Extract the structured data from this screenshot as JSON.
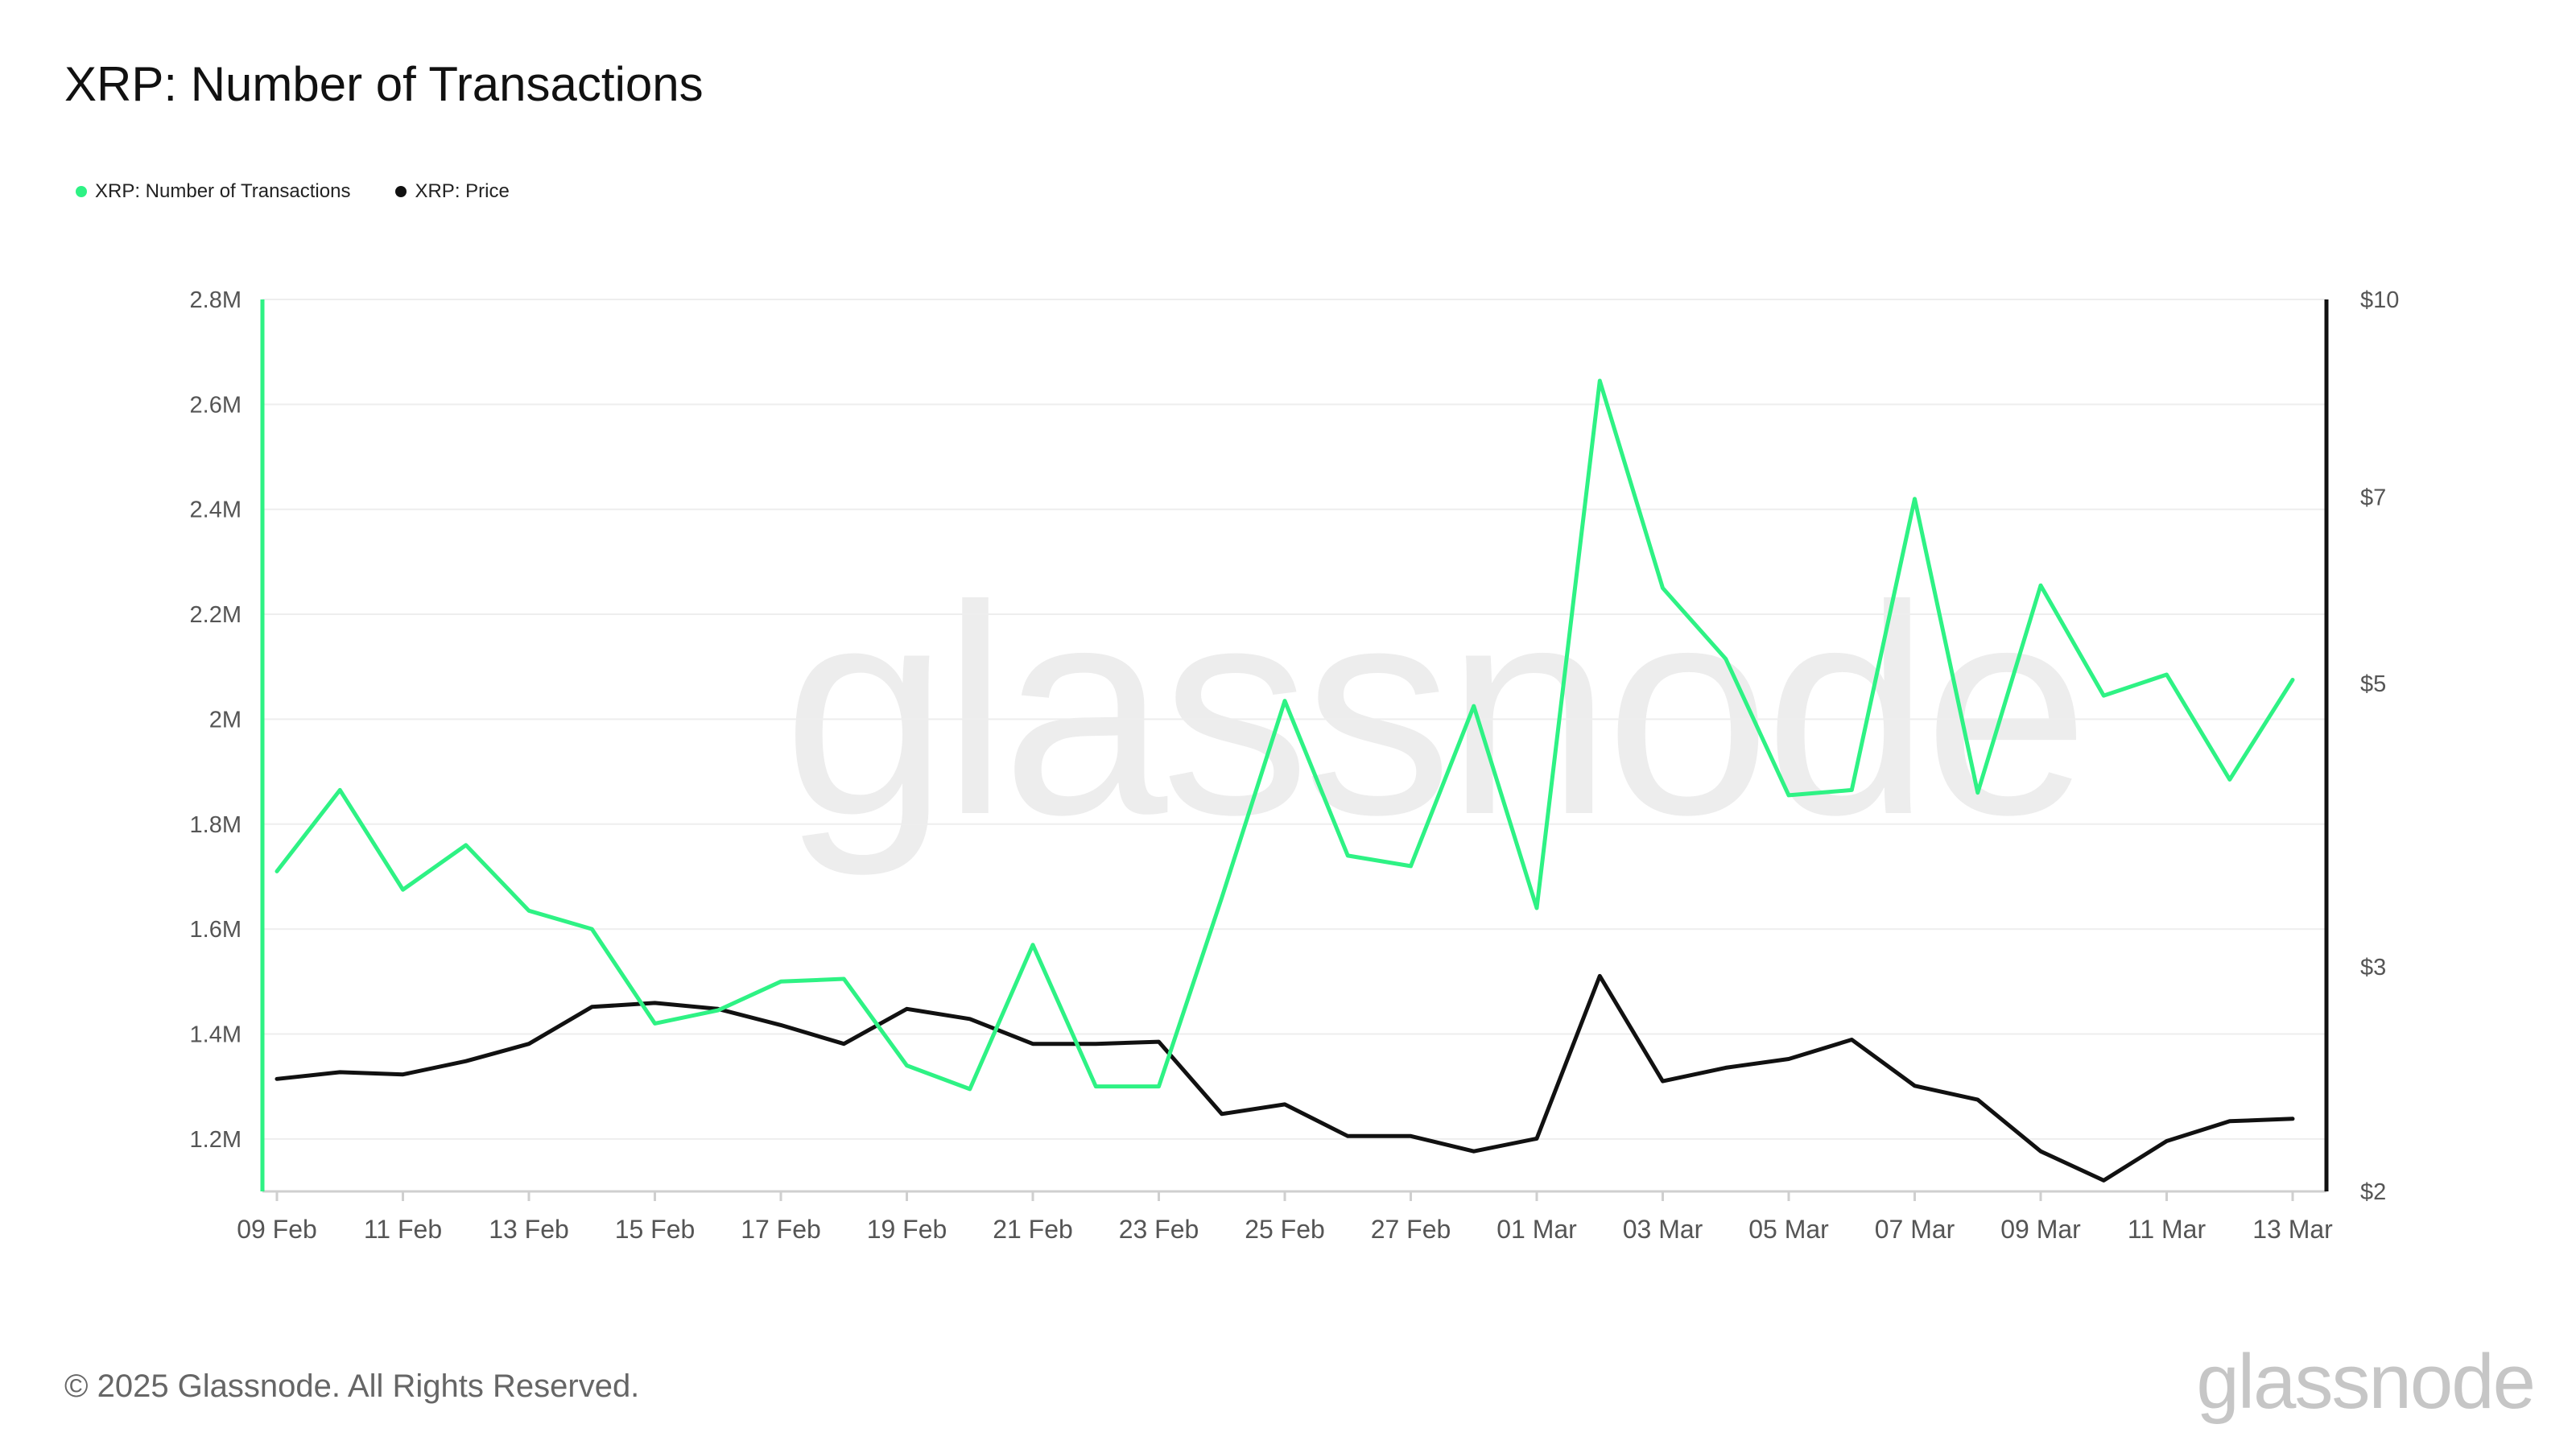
{
  "title": "XRP: Number of Transactions",
  "legend": [
    {
      "label": "XRP: Number of Transactions",
      "color": "#2ef284"
    },
    {
      "label": "XRP: Price",
      "color": "#111111"
    }
  ],
  "footer": "© 2025 Glassnode. All Rights Reserved.",
  "brand": "glassnode",
  "watermark": "glassnode",
  "chart_data": {
    "type": "line",
    "x": [
      "09 Feb",
      "10 Feb",
      "11 Feb",
      "12 Feb",
      "13 Feb",
      "14 Feb",
      "15 Feb",
      "16 Feb",
      "17 Feb",
      "18 Feb",
      "19 Feb",
      "20 Feb",
      "21 Feb",
      "22 Feb",
      "23 Feb",
      "24 Feb",
      "25 Feb",
      "26 Feb",
      "27 Feb",
      "28 Feb",
      "01 Mar",
      "02 Mar",
      "03 Mar",
      "04 Mar",
      "05 Mar",
      "06 Mar",
      "07 Mar",
      "08 Mar",
      "09 Mar",
      "10 Mar",
      "11 Mar",
      "12 Mar",
      "13 Mar"
    ],
    "x_tick_labels": [
      "09 Feb",
      "11 Feb",
      "13 Feb",
      "15 Feb",
      "17 Feb",
      "19 Feb",
      "21 Feb",
      "23 Feb",
      "25 Feb",
      "27 Feb",
      "01 Mar",
      "03 Mar",
      "05 Mar",
      "07 Mar",
      "09 Mar",
      "11 Mar",
      "13 Mar"
    ],
    "y_left": {
      "ticks": [
        1200000,
        1400000,
        1600000,
        1800000,
        2000000,
        2200000,
        2400000,
        2600000,
        2800000
      ],
      "tick_labels": [
        "1.2M",
        "1.4M",
        "1.6M",
        "1.8M",
        "2M",
        "2.2M",
        "2.4M",
        "2.6M",
        "2.8M"
      ],
      "range": [
        1100000,
        2800000
      ]
    },
    "y_right": {
      "scale": "log",
      "ticks": [
        2,
        3,
        5,
        7,
        10
      ],
      "tick_labels": [
        "$2",
        "$3",
        "$5",
        "$7",
        "$10"
      ],
      "range": [
        2,
        10
      ]
    },
    "grid": true,
    "series": [
      {
        "name": "XRP: Number of Transactions",
        "axis": "left",
        "color": "#2ef284",
        "values": [
          1710000,
          1865000,
          1675000,
          1760000,
          1635000,
          1600000,
          1420000,
          1445000,
          1500000,
          1505000,
          1340000,
          1295000,
          1570000,
          1300000,
          1300000,
          1660000,
          2035000,
          1740000,
          1720000,
          2025000,
          1640000,
          2645000,
          2250000,
          2115000,
          1855000,
          1865000,
          2420000,
          1860000,
          2255000,
          2045000,
          2085000,
          1885000,
          2075000
        ]
      },
      {
        "name": "XRP: Price",
        "axis": "right",
        "color": "#111111",
        "values": [
          2.45,
          2.48,
          2.47,
          2.53,
          2.61,
          2.79,
          2.81,
          2.78,
          2.7,
          2.61,
          2.78,
          2.73,
          2.61,
          2.61,
          2.62,
          2.3,
          2.34,
          2.21,
          2.21,
          2.15,
          2.2,
          2.95,
          2.44,
          2.5,
          2.54,
          2.63,
          2.42,
          2.36,
          2.15,
          2.04,
          2.19,
          2.27,
          2.28
        ]
      }
    ]
  }
}
